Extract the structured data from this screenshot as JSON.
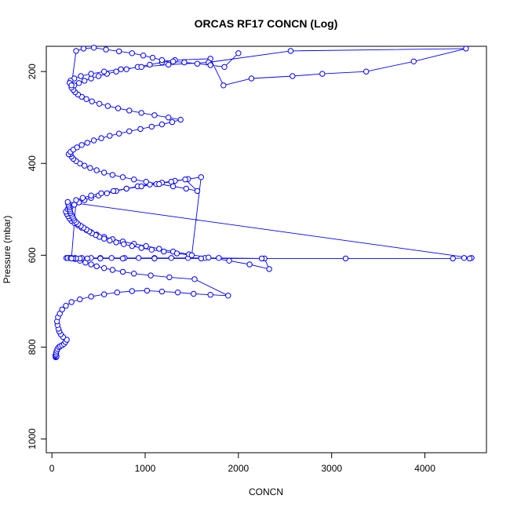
{
  "chart_data": {
    "type": "line",
    "title": "ORCAS RF17 CONCN (Log)",
    "xlabel": "CONCN",
    "ylabel": "Pressure (mbar)",
    "xlim": [
      -60,
      4660
    ],
    "ylim": [
      1030,
      145
    ],
    "y_reversed": true,
    "x_ticks": [
      0,
      1000,
      2000,
      3000,
      4000
    ],
    "y_ticks": [
      200,
      400,
      600,
      800,
      1000
    ],
    "grid": false,
    "legend": "none",
    "series_color": "#0000ff",
    "marker": "open-circle",
    "series": [
      {
        "x": [
          40,
          45,
          42,
          50,
          38,
          44,
          46,
          52,
          60,
          75,
          90,
          110,
          130,
          145,
          160,
          120,
          95,
          80,
          70,
          60,
          55,
          65,
          85,
          110,
          150,
          210,
          300,
          420,
          560,
          700,
          860,
          1020,
          1180,
          1350,
          1520,
          1700,
          1890,
          1530,
          1260,
          1060,
          880,
          760,
          650,
          560,
          480,
          420,
          360,
          300,
          250,
          210,
          190,
          170,
          155,
          170,
          200,
          250,
          320,
          420,
          520,
          640,
          780,
          930,
          1100,
          1280,
          1460,
          1640,
          1790,
          2280,
          2330,
          2120,
          1900,
          1680,
          1470,
          1300,
          1150,
          1010,
          880,
          760,
          650,
          560,
          480,
          420,
          370,
          320,
          280,
          240,
          210,
          190,
          175,
          160,
          150,
          170,
          200,
          240,
          290,
          350,
          420,
          500,
          590,
          690,
          800,
          920,
          1050,
          1180,
          1320,
          1460,
          1600,
          1500,
          1340,
          1200,
          1070,
          960,
          860,
          770,
          690,
          620,
          560,
          510,
          470,
          430,
          400,
          370,
          340,
          310,
          280,
          260,
          240,
          230,
          220,
          210,
          200,
          195,
          190,
          185,
          180,
          175,
          170,
          4500,
          4480,
          4420,
          4300,
          3150,
          2250,
          1600,
          1100,
          760,
          520,
          380,
          300,
          260,
          230,
          210,
          260,
          330,
          420,
          530,
          660,
          800,
          960,
          1120,
          1280,
          1430,
          1560,
          1440,
          1300,
          1150,
          1010,
          880,
          760,
          650,
          560,
          480,
          410,
          350,
          300,
          260,
          230,
          210,
          200,
          180,
          200,
          230,
          270,
          320,
          380,
          450,
          530,
          620,
          720,
          830,
          950,
          1070,
          1180,
          1290,
          1380,
          1250,
          1100,
          960,
          830,
          710,
          600,
          510,
          430,
          370,
          320,
          280,
          250,
          230,
          210,
          240,
          290,
          350,
          420,
          500,
          590,
          690,
          800,
          920,
          1050,
          1180,
          1320,
          1700,
          1840,
          2140,
          2580,
          2900,
          3370,
          3880,
          4440,
          2560,
          1680,
          1250,
          960,
          740,
          560,
          420,
          310,
          240,
          200,
          190,
          210,
          260,
          340,
          450,
          580,
          720,
          860,
          980,
          1080,
          1180,
          1300,
          1420,
          1560,
          1700,
          1850,
          2000
        ],
        "y": [
          822,
          822,
          821,
          820,
          818,
          816,
          812,
          808,
          804,
          800,
          798,
          796,
          793,
          789,
          784,
          778,
          772,
          766,
          760,
          752,
          744,
          735,
          727,
          718,
          710,
          702,
          696,
          690,
          685,
          681,
          678,
          677,
          679,
          681,
          684,
          686,
          688,
          652,
          648,
          644,
          640,
          636,
          632,
          628,
          624,
          620,
          616,
          612,
          608,
          606,
          606,
          606,
          606,
          606,
          606,
          606,
          606,
          606,
          606,
          606,
          606,
          606,
          606,
          606,
          606,
          606,
          606,
          607,
          630,
          620,
          612,
          605,
          598,
          592,
          586,
          580,
          575,
          570,
          565,
          560,
          555,
          550,
          545,
          540,
          535,
          530,
          525,
          520,
          515,
          510,
          505,
          500,
          495,
          490,
          485,
          480,
          475,
          470,
          465,
          460,
          455,
          450,
          446,
          442,
          438,
          434,
          430,
          600,
          596,
          592,
          588,
          584,
          580,
          576,
          572,
          568,
          564,
          560,
          556,
          552,
          548,
          544,
          540,
          536,
          532,
          528,
          524,
          520,
          516,
          512,
          508,
          504,
          500,
          496,
          492,
          488,
          484,
          606,
          607,
          606,
          607,
          607,
          607,
          607,
          607,
          607,
          607,
          607,
          607,
          607,
          607,
          607,
          480,
          475,
          470,
          465,
          460,
          455,
          450,
          445,
          440,
          435,
          460,
          455,
          450,
          445,
          440,
          435,
          430,
          425,
          420,
          415,
          410,
          405,
          400,
          395,
          390,
          385,
          380,
          380,
          375,
          370,
          365,
          360,
          355,
          350,
          345,
          340,
          335,
          330,
          325,
          320,
          315,
          310,
          305,
          300,
          295,
          290,
          285,
          280,
          275,
          270,
          265,
          260,
          255,
          250,
          245,
          240,
          235,
          230,
          225,
          220,
          215,
          210,
          205,
          200,
          195,
          190,
          185,
          180,
          175,
          172,
          230,
          215,
          210,
          205,
          200,
          178,
          150,
          155,
          180,
          185,
          190,
          195,
          200,
          205,
          210,
          215,
          220,
          225,
          230,
          155,
          150,
          148,
          152,
          156,
          160,
          165,
          170,
          175,
          178,
          180,
          183,
          186,
          190,
          160
        ]
      }
    ]
  }
}
